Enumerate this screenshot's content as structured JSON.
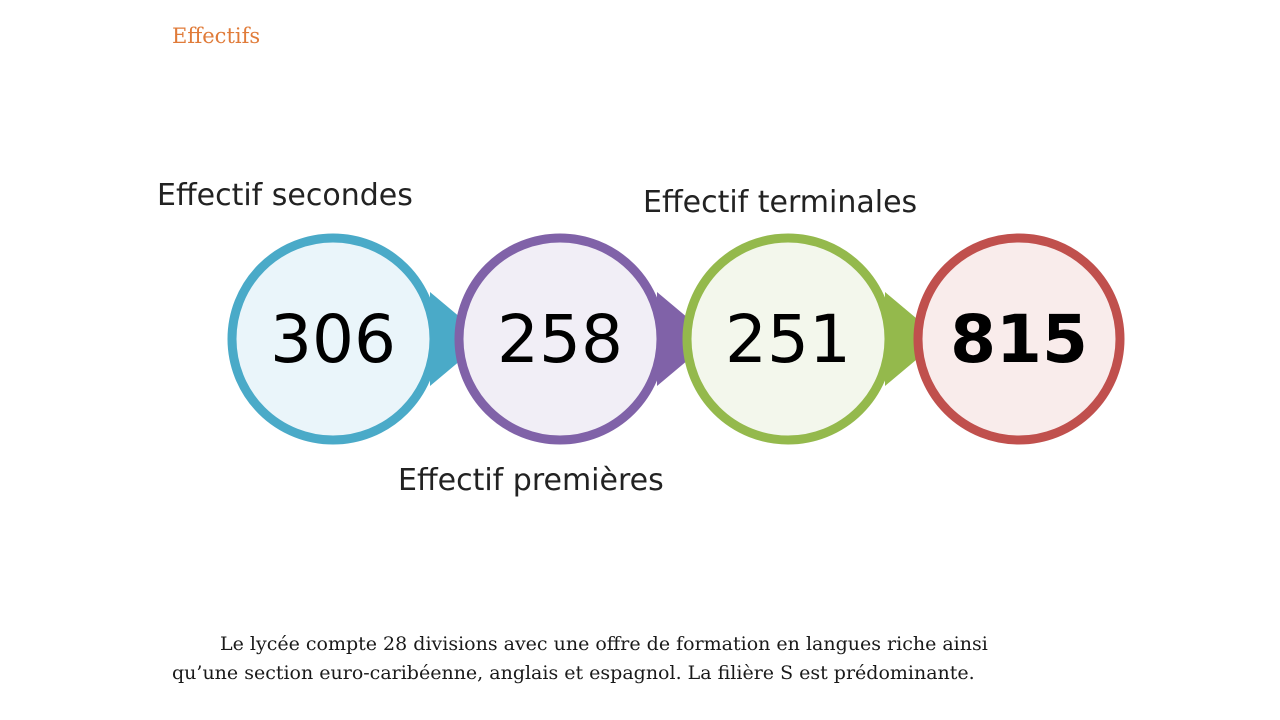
{
  "section_title": "Effectifs",
  "diagram": {
    "labels": {
      "secondes": "Effectif secondes",
      "premieres": "Effectif premières",
      "terminales": "Effectif terminales"
    },
    "circles": [
      {
        "value": "306",
        "stroke": "#4aaac8",
        "fill": "#eaf5fa",
        "bold": false
      },
      {
        "value": "258",
        "stroke": "#8062a8",
        "fill": "#f1eef6",
        "bold": false
      },
      {
        "value": "251",
        "stroke": "#94b94c",
        "fill": "#f3f7ec",
        "bold": false
      },
      {
        "value": "815",
        "stroke": "#c0504d",
        "fill": "#f9eceb",
        "bold": true
      }
    ]
  },
  "paragraph": {
    "line1": "Le lycée compte 28 divisions avec une offre de formation en langues riche ainsi",
    "line2": "qu’une  section euro-caribéenne, anglais et espagnol. La filière S est prédominante."
  }
}
